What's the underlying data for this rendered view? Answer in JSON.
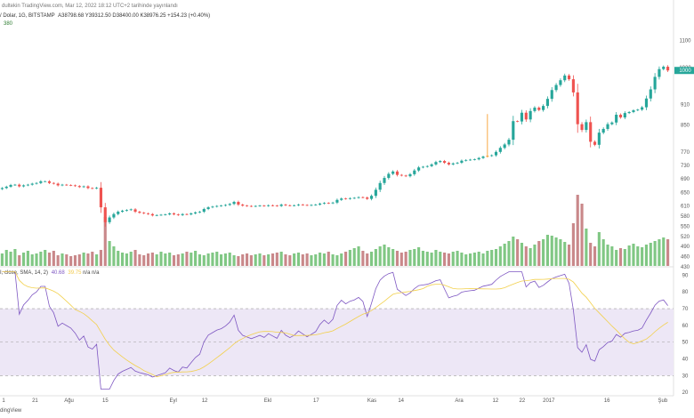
{
  "header": {
    "line1": "dultekin TradingView.com, Mar 12, 2022 18:12 UTC+2 tarihinde yayınlandı",
    "symbol": "/ Dolar, 1G, BITSTAMP",
    "ohlc": "A38798.68 Y39312.50 D38400.00 K38976.25 +154.23 (+0.40%)",
    "vol": "380"
  },
  "rsi_label": {
    "name": "I, close, SMA, 14, 2)",
    "rsi_value": "40.68",
    "ma_value": "39.75",
    "na": "n/a n/a"
  },
  "footer": {
    "text": "dingView"
  },
  "price_axis_labels": [
    "1100",
    "1020",
    "910",
    "850",
    "770",
    "730",
    "690",
    "650",
    "610",
    "580",
    "550",
    "520",
    "490",
    "460",
    "430"
  ],
  "price_axis_current": "1000",
  "rsi_axis_labels": [
    "90",
    "80",
    "70",
    "60",
    "50",
    "40",
    "30",
    "20"
  ],
  "time_axis_labels": [
    "1",
    "21",
    "Ağu",
    "15",
    "Eyl",
    "12",
    "Ekl",
    "17",
    "Kas",
    "14",
    "Ara",
    "12",
    "22",
    "2017",
    "16",
    "Şub"
  ],
  "colors": {
    "up": "#26a69a",
    "down": "#ef5350",
    "highlight": "#f7931a",
    "vol_up": "#80c784",
    "vol_down": "#c9888a",
    "rsi_line": "#7e57c2",
    "rsi_ma": "#f2d04c",
    "rsi_band": "#ede7f6"
  },
  "chart_data": [
    {
      "type": "candlestick",
      "price_axis": [
        430,
        1130
      ],
      "candles_close": [
        663,
        667,
        672,
        673,
        668,
        671,
        673,
        676,
        678,
        683,
        683,
        678,
        676,
        671,
        673,
        672,
        671,
        669,
        666,
        668,
        663,
        662,
        664,
        606,
        562,
        576,
        586,
        593,
        596,
        598,
        600,
        593,
        590,
        588,
        586,
        582,
        583,
        584,
        585,
        588,
        585,
        583,
        586,
        585,
        588,
        591,
        593,
        601,
        606,
        608,
        610,
        611,
        613,
        616,
        622,
        614,
        611,
        610,
        609,
        610,
        611,
        610,
        612,
        611,
        610,
        614,
        612,
        611,
        612,
        614,
        613,
        612,
        613,
        614,
        617,
        619,
        618,
        620,
        628,
        632,
        631,
        633,
        634,
        636,
        635,
        631,
        640,
        658,
        678,
        693,
        705,
        712,
        702,
        700,
        698,
        704,
        715,
        724,
        726,
        728,
        733,
        740,
        743,
        738,
        733,
        736,
        738,
        744,
        746,
        747,
        748,
        752,
        756,
        758,
        760,
        770,
        782,
        792,
        806,
        861,
        860,
        886,
        866,
        891,
        901,
        894,
        906,
        927,
        953,
        968,
        982,
        996,
        985,
        946,
        852,
        835,
        858,
        800,
        791,
        827,
        838,
        852,
        857,
        880,
        872,
        885,
        888,
        893,
        895,
        902,
        928,
        955,
        992,
        1015,
        1022,
        1011
      ],
      "highlight_index": 113,
      "highlight_high": 882,
      "volumes": [
        14,
        18,
        16,
        19,
        12,
        15,
        17,
        13,
        14,
        16,
        18,
        15,
        17,
        12,
        14,
        13,
        11,
        12,
        13,
        15,
        14,
        16,
        13,
        18,
        55,
        28,
        22,
        17,
        15,
        14,
        16,
        18,
        13,
        12,
        14,
        15,
        13,
        16,
        14,
        15,
        12,
        13,
        14,
        16,
        15,
        17,
        13,
        12,
        14,
        15,
        16,
        13,
        14,
        15,
        12,
        11,
        13,
        14,
        12,
        13,
        14,
        12,
        13,
        14,
        15,
        16,
        13,
        12,
        14,
        15,
        13,
        14,
        12,
        13,
        15,
        14,
        16,
        13,
        12,
        14,
        16,
        18,
        20,
        22,
        17,
        14,
        16,
        19,
        22,
        24,
        21,
        19,
        17,
        15,
        16,
        18,
        19,
        21,
        17,
        16,
        15,
        18,
        16,
        15,
        14,
        16,
        17,
        15,
        13,
        14,
        15,
        16,
        14,
        17,
        18,
        19,
        22,
        25,
        28,
        33,
        30,
        26,
        22,
        20,
        24,
        28,
        30,
        35,
        34,
        32,
        30,
        27,
        24,
        48,
        80,
        70,
        42,
        26,
        22,
        38,
        30,
        24,
        22,
        18,
        20,
        19,
        23,
        25,
        22,
        21,
        24,
        26,
        28,
        30,
        32,
        30
      ]
    },
    {
      "type": "line",
      "name": "RSI",
      "y_axis": [
        18,
        95
      ],
      "overbought": 70,
      "oversold": 30,
      "midline": 50
    }
  ]
}
